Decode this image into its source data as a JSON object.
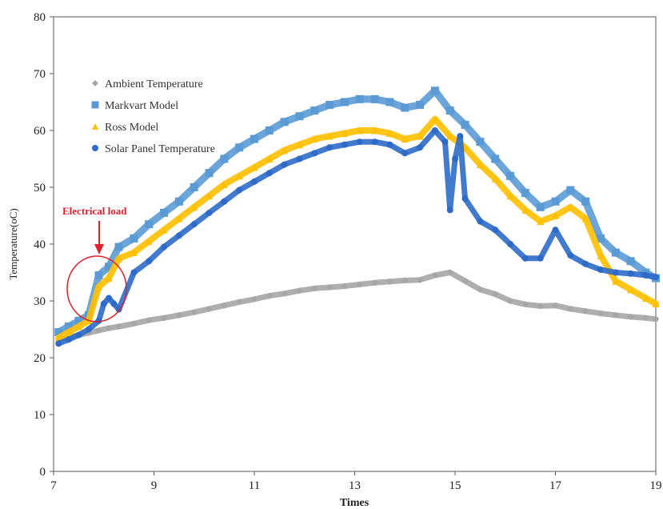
{
  "chart_data": {
    "type": "scatter",
    "title": "",
    "xlabel": "Times",
    "ylabel": "Temperature(oC)",
    "xlim": [
      7,
      19
    ],
    "ylim": [
      0,
      80
    ],
    "x_ticks": [
      "7",
      "9",
      "11",
      "13",
      "15",
      "17",
      "19"
    ],
    "y_ticks": [
      "0",
      "10",
      "20",
      "30",
      "40",
      "50",
      "60",
      "70",
      "80"
    ],
    "grid": false,
    "legend_position": "top-left",
    "annotation": {
      "text": "Electrical load",
      "x": 7.9,
      "y": 31,
      "color": "#e0202a"
    },
    "series": [
      {
        "name": "Ambient Temperature",
        "color": "#a6a6a6",
        "marker": "diamond",
        "x": [
          7.1,
          7.3,
          7.5,
          7.7,
          7.9,
          8.1,
          8.3,
          8.6,
          8.9,
          9.2,
          9.5,
          9.8,
          10.1,
          10.4,
          10.7,
          11.0,
          11.3,
          11.6,
          11.9,
          12.2,
          12.5,
          12.8,
          13.1,
          13.4,
          13.7,
          14.0,
          14.3,
          14.6,
          14.9,
          15.2,
          15.5,
          15.8,
          16.1,
          16.4,
          16.7,
          17.0,
          17.3,
          17.6,
          17.9,
          18.2,
          18.5,
          18.8,
          19.0
        ],
        "y": [
          23.2,
          23.6,
          24.0,
          24.4,
          24.8,
          25.2,
          25.5,
          26.0,
          26.6,
          27.0,
          27.5,
          28.0,
          28.6,
          29.2,
          29.8,
          30.3,
          30.9,
          31.3,
          31.8,
          32.2,
          32.4,
          32.6,
          32.9,
          33.2,
          33.4,
          33.6,
          33.7,
          34.5,
          35.0,
          33.5,
          32.0,
          31.2,
          30.0,
          29.4,
          29.1,
          29.2,
          28.6,
          28.2,
          27.8,
          27.5,
          27.2,
          27.0,
          26.8
        ]
      },
      {
        "name": "Markvart Model",
        "color": "#5b9bd5",
        "marker": "square",
        "x": [
          7.1,
          7.3,
          7.5,
          7.7,
          7.9,
          8.1,
          8.3,
          8.6,
          8.9,
          9.2,
          9.5,
          9.8,
          10.1,
          10.4,
          10.7,
          11.0,
          11.3,
          11.6,
          11.9,
          12.2,
          12.5,
          12.8,
          13.1,
          13.4,
          13.7,
          14.0,
          14.3,
          14.6,
          14.9,
          15.2,
          15.5,
          15.8,
          16.1,
          16.4,
          16.7,
          17.0,
          17.3,
          17.6,
          17.9,
          18.2,
          18.5,
          18.8,
          19.0
        ],
        "y": [
          24.5,
          25.5,
          26.5,
          27.5,
          34.5,
          36.0,
          39.5,
          41.0,
          43.5,
          45.5,
          47.5,
          50.0,
          52.5,
          55.0,
          57.0,
          58.5,
          60.0,
          61.5,
          62.5,
          63.5,
          64.5,
          65.0,
          65.5,
          65.5,
          65.0,
          64.0,
          64.5,
          67.0,
          63.5,
          61.0,
          58.0,
          55.0,
          52.0,
          49.0,
          46.5,
          47.5,
          49.5,
          47.5,
          41.0,
          38.5,
          37.0,
          35.0,
          34.0
        ]
      },
      {
        "name": "Ross Model",
        "color": "#ffc000",
        "marker": "triangle",
        "x": [
          7.1,
          7.3,
          7.5,
          7.7,
          7.9,
          8.1,
          8.3,
          8.6,
          8.9,
          9.2,
          9.5,
          9.8,
          10.1,
          10.4,
          10.7,
          11.0,
          11.3,
          11.6,
          11.9,
          12.2,
          12.5,
          12.8,
          13.1,
          13.4,
          13.7,
          14.0,
          14.3,
          14.6,
          14.9,
          15.2,
          15.5,
          15.8,
          16.1,
          16.4,
          16.7,
          17.0,
          17.3,
          17.6,
          17.9,
          18.2,
          18.5,
          18.8,
          19.0
        ],
        "y": [
          23.5,
          24.5,
          25.5,
          26.5,
          32.5,
          34.0,
          37.5,
          38.5,
          40.5,
          42.5,
          44.5,
          46.5,
          48.5,
          50.5,
          52.0,
          53.5,
          55.0,
          56.5,
          57.5,
          58.5,
          59.0,
          59.5,
          60.0,
          60.0,
          59.5,
          58.5,
          59.0,
          62.0,
          59.0,
          57.0,
          54.0,
          51.5,
          48.5,
          46.0,
          44.0,
          45.0,
          46.5,
          44.5,
          38.0,
          33.5,
          32.0,
          30.5,
          29.5
        ]
      },
      {
        "name": "Solar Panel Temperature",
        "color": "#2e6bc9",
        "marker": "circle",
        "x": [
          7.1,
          7.3,
          7.5,
          7.7,
          7.9,
          8.0,
          8.1,
          8.2,
          8.3,
          8.6,
          8.9,
          9.2,
          9.5,
          9.8,
          10.1,
          10.4,
          10.7,
          11.0,
          11.3,
          11.6,
          11.9,
          12.2,
          12.5,
          12.8,
          13.1,
          13.4,
          13.7,
          14.0,
          14.3,
          14.6,
          14.8,
          14.9,
          15.0,
          15.1,
          15.2,
          15.5,
          15.8,
          16.1,
          16.4,
          16.7,
          17.0,
          17.3,
          17.6,
          17.9,
          18.2,
          18.5,
          18.8,
          19.0
        ],
        "y": [
          22.5,
          23.2,
          24.0,
          25.0,
          26.5,
          29.5,
          30.5,
          29.5,
          28.5,
          35.0,
          37.0,
          39.5,
          41.5,
          43.5,
          45.5,
          47.5,
          49.5,
          51.0,
          52.5,
          54.0,
          55.0,
          56.0,
          57.0,
          57.5,
          58.0,
          58.0,
          57.5,
          56.0,
          57.0,
          60.0,
          58.0,
          46.0,
          55.0,
          59.0,
          48.0,
          44.0,
          42.5,
          40.0,
          37.5,
          37.5,
          42.5,
          38.0,
          36.5,
          35.5,
          35.0,
          34.8,
          34.5,
          34.2
        ]
      }
    ]
  }
}
